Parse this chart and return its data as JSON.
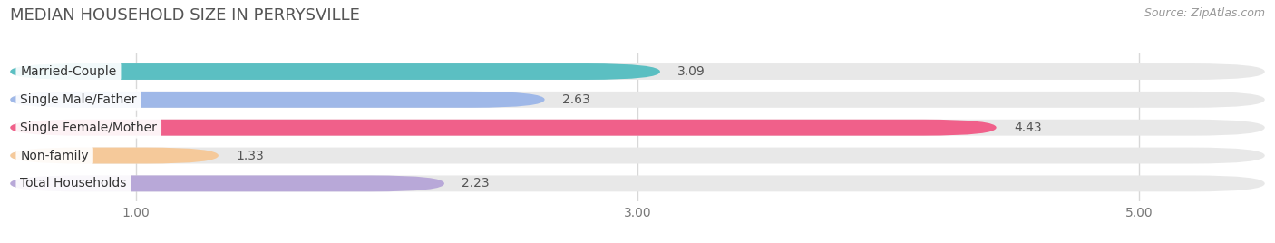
{
  "title": "MEDIAN HOUSEHOLD SIZE IN PERRYSVILLE",
  "source": "Source: ZipAtlas.com",
  "categories": [
    "Married-Couple",
    "Single Male/Father",
    "Single Female/Mother",
    "Non-family",
    "Total Households"
  ],
  "values": [
    3.09,
    2.63,
    4.43,
    1.33,
    2.23
  ],
  "bar_colors": [
    "#5bbfc2",
    "#9fb8e8",
    "#f0608a",
    "#f5c99a",
    "#b8a8d8"
  ],
  "xlim_start": 0.5,
  "xlim_end": 5.5,
  "xticks": [
    1.0,
    3.0,
    5.0
  ],
  "background_color": "#ffffff",
  "bar_bg_color": "#e8e8e8",
  "title_fontsize": 13,
  "source_fontsize": 9,
  "label_fontsize": 10,
  "value_fontsize": 10
}
